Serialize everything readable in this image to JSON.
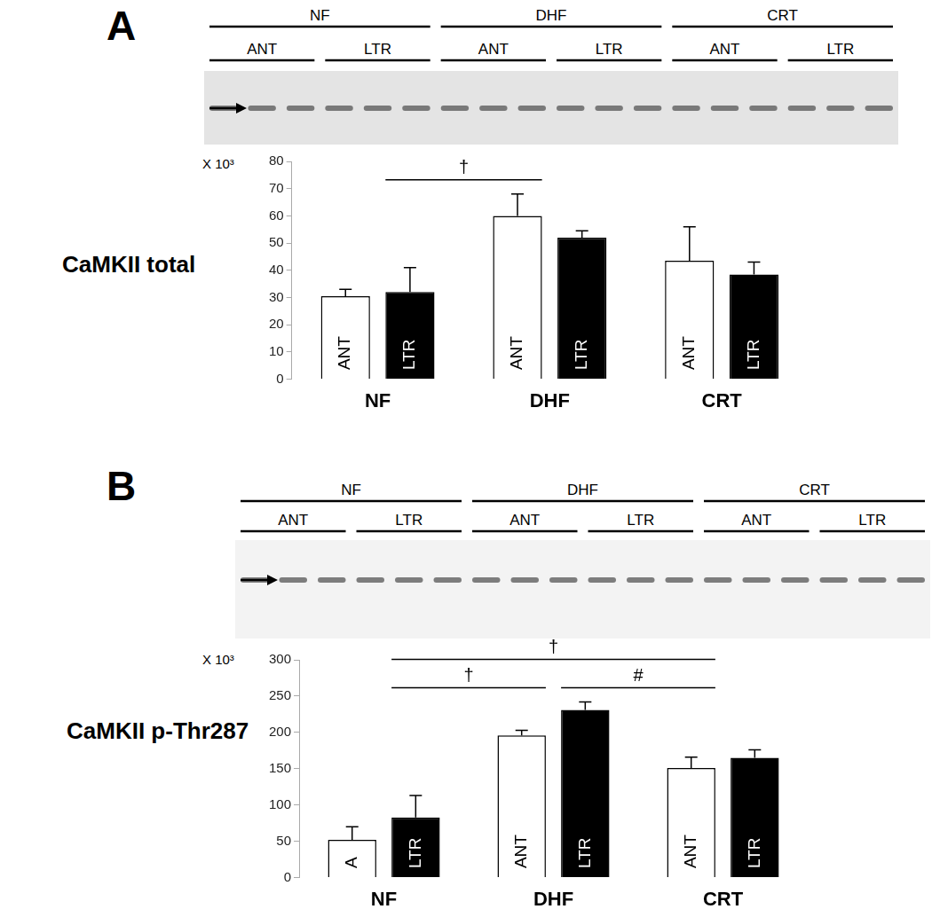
{
  "chart_data": [
    {
      "type": "bar",
      "panel": "A",
      "ylabel": "CaMKII total",
      "scale_label": "X 10³",
      "categories": [
        "NF",
        "DHF",
        "CRT"
      ],
      "series": [
        {
          "name": "ANT",
          "color": "#ffffff",
          "values": [
            30.5,
            60,
            43.5
          ],
          "errors": [
            2.5,
            8,
            12.5
          ],
          "bar_texts": [
            "ANT",
            "ANT",
            "ANT"
          ]
        },
        {
          "name": "LTR",
          "color": "#000000",
          "values": [
            32,
            52,
            38.5
          ],
          "errors": [
            9,
            2.5,
            4.5
          ],
          "bar_texts": [
            "LTR",
            "LTR",
            "LTR"
          ]
        }
      ],
      "ylim": [
        0,
        80
      ],
      "yticks": [
        0,
        10,
        20,
        30,
        40,
        50,
        60,
        70,
        80
      ],
      "grid": false,
      "annotations": [
        {
          "text": "†",
          "from": "NF",
          "to": "DHF"
        }
      ]
    },
    {
      "type": "bar",
      "panel": "B",
      "ylabel": "CaMKII p-Thr287",
      "scale_label": "X 10³",
      "categories": [
        "NF",
        "DHF",
        "CRT"
      ],
      "series": [
        {
          "name": "ANT",
          "color": "#ffffff",
          "values": [
            52,
            196,
            151
          ],
          "errors": [
            18,
            7,
            15
          ],
          "bar_texts": [
            "A",
            "ANT",
            "ANT"
          ]
        },
        {
          "name": "LTR",
          "color": "#000000",
          "values": [
            83,
            231,
            165
          ],
          "errors": [
            30,
            11,
            11
          ],
          "bar_texts": [
            "LTR",
            "LTR",
            "LTR"
          ]
        }
      ],
      "ylim": [
        0,
        300
      ],
      "yticks": [
        0,
        50,
        100,
        150,
        200,
        250,
        300
      ],
      "grid": false,
      "annotations": [
        {
          "text": "†",
          "from": "NF",
          "to": "CRT"
        },
        {
          "text": "†",
          "from": "NF",
          "to": "DHF"
        },
        {
          "text": "#",
          "from": "DHF",
          "to": "CRT"
        }
      ]
    }
  ]
}
